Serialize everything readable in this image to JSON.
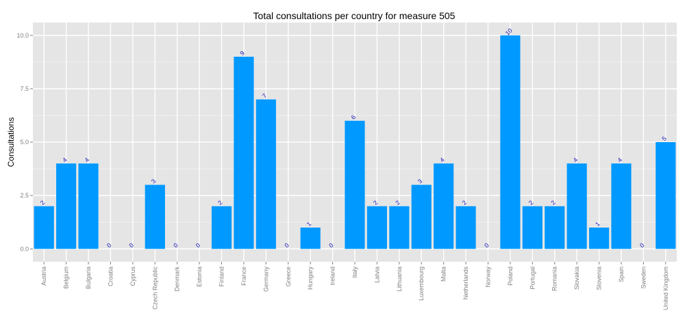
{
  "chart_data": {
    "type": "bar",
    "title": "Total consultations per country for measure 505",
    "xlabel": "",
    "ylabel": "Consultations",
    "ylim": [
      -0.6,
      10.6
    ],
    "yticks": [
      0,
      2.5,
      5,
      7.5,
      10
    ],
    "ytick_labels": [
      "0.0",
      "2.5",
      "5.0",
      "7.5",
      "10.0"
    ],
    "grid": true,
    "legend": "none",
    "categories": [
      "Austria",
      "Belgium",
      "Bulgaria",
      "Croatia",
      "Cyprus",
      "Czech Republic",
      "Denmark",
      "Estonia",
      "Finland",
      "France",
      "Germany",
      "Greece",
      "Hungary",
      "Ireland",
      "Italy",
      "Latvia",
      "Lithuania",
      "Luxembourg",
      "Malta",
      "Netherlands",
      "Norway",
      "Poland",
      "Portugal",
      "Romania",
      "Slovakia",
      "Slovenia",
      "Spain",
      "Sweden",
      "United Kingdom"
    ],
    "values": [
      2,
      4,
      4,
      0,
      0,
      3,
      0,
      0,
      2,
      9,
      7,
      0,
      1,
      0,
      6,
      2,
      2,
      3,
      4,
      2,
      0,
      10,
      2,
      2,
      4,
      1,
      4,
      0,
      5
    ],
    "colors": {
      "bar": "#0099ff",
      "panel": "#e5e5e5",
      "grid_major": "#ffffff",
      "grid_minor": "#f2f2f2",
      "data_label": "#1a1ab8",
      "tick_label": "#7f7f7f"
    }
  }
}
